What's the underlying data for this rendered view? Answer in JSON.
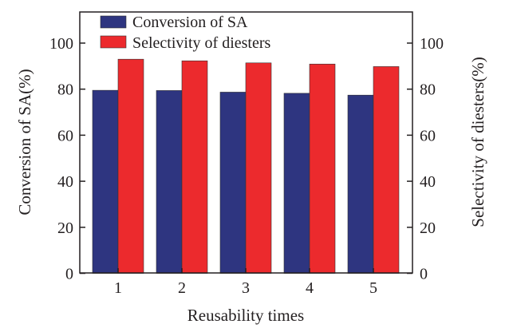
{
  "chart_data": {
    "type": "bar",
    "title": "",
    "xlabel": "Reusability times",
    "ylabel": "Conversion of SA(%)",
    "ylabel_right": "Selectivity of diesters(%)",
    "categories": [
      "1",
      "2",
      "3",
      "4",
      "5"
    ],
    "series": [
      {
        "name": "Conversion of SA",
        "color": "#2e3580",
        "axis": "left",
        "values": [
          79.5,
          79.4,
          78.7,
          78.2,
          77.4
        ]
      },
      {
        "name": "Selectivity of diesters",
        "color": "#ec2a2d",
        "axis": "right",
        "values": [
          93.0,
          92.3,
          91.4,
          90.9,
          89.8
        ]
      }
    ],
    "ylim": [
      0,
      113
    ],
    "yticks": [
      "0",
      "20",
      "40",
      "60",
      "80",
      "100"
    ],
    "yticks_right": [
      "0",
      "20",
      "40",
      "60",
      "80",
      "100"
    ],
    "grid": false,
    "legend_position": "top-left"
  }
}
